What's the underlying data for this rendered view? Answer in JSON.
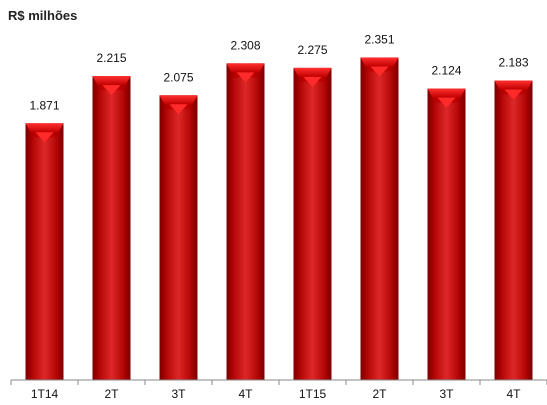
{
  "chart_data": {
    "type": "bar",
    "title": "R$ milhões",
    "categories": [
      "1T14",
      "2T",
      "3T",
      "4T",
      "1T15",
      "2T",
      "3T",
      "4T"
    ],
    "values": [
      1871,
      2215,
      2075,
      2308,
      2275,
      2351,
      2124,
      2183
    ],
    "value_labels": [
      "1.871",
      "2.215",
      "2.075",
      "2.308",
      "2.275",
      "2.351",
      "2.124",
      "2.183"
    ],
    "xlabel": "",
    "ylabel": "",
    "ylim": [
      0,
      2600
    ],
    "grid": false,
    "legend": "none",
    "colors": {
      "bar": "#c00000",
      "bar_dark": "#8c0000",
      "bar_light": "#e62020",
      "axis": "#888888",
      "text": "#111111"
    }
  }
}
